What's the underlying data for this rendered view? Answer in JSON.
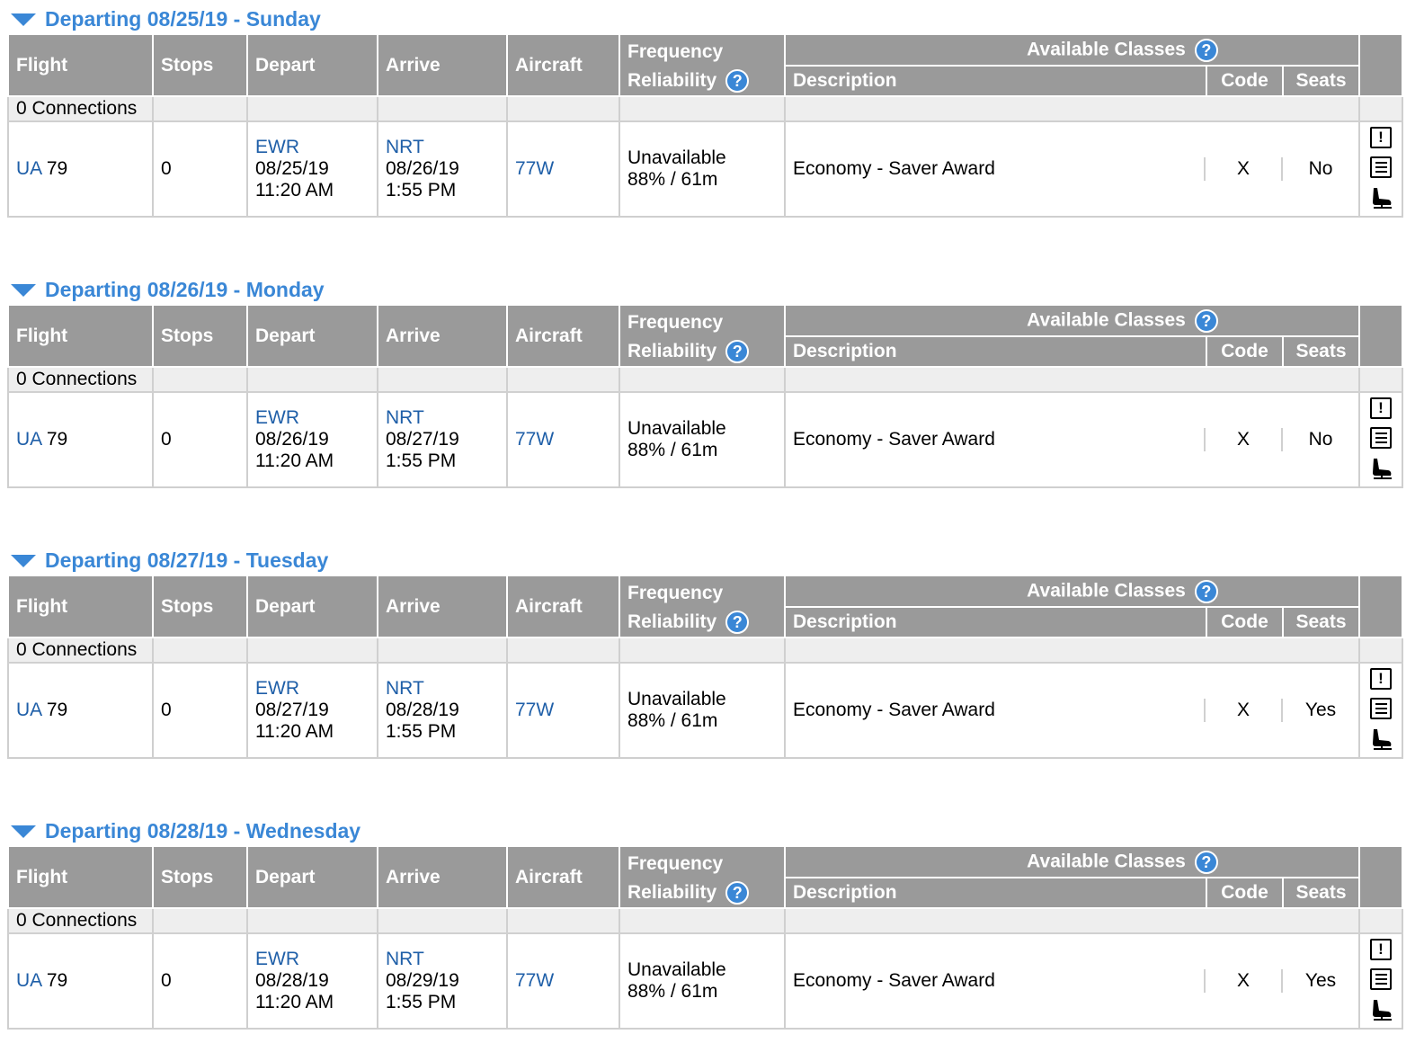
{
  "headers": {
    "flight": "Flight",
    "stops": "Stops",
    "depart": "Depart",
    "arrive": "Arrive",
    "aircraft": "Aircraft",
    "frequency": "Frequency",
    "reliability": "Reliability",
    "available_classes": "Available Classes",
    "description": "Description",
    "code": "Code",
    "seats": "Seats",
    "help_glyph": "?"
  },
  "icons": {
    "alert": "!",
    "alert_name": "alert-icon",
    "details_name": "details-icon",
    "seat_name": "seat-map-icon"
  },
  "days": [
    {
      "title": "Departing 08/25/19 - Sunday",
      "connections": "0 Connections",
      "flight": {
        "carrier": "UA",
        "number": "79",
        "stops": "0",
        "depart_airport": "EWR",
        "depart_date": "08/25/19",
        "depart_time": "11:20 AM",
        "arrive_airport": "NRT",
        "arrive_date": "08/26/19",
        "arrive_time": "1:55 PM",
        "aircraft": "77W",
        "frequency": "Unavailable",
        "reliability": "88% / 61m",
        "class_description": "Economy - Saver Award",
        "class_code": "X",
        "seats": "No"
      }
    },
    {
      "title": "Departing 08/26/19 - Monday",
      "connections": "0 Connections",
      "flight": {
        "carrier": "UA",
        "number": "79",
        "stops": "0",
        "depart_airport": "EWR",
        "depart_date": "08/26/19",
        "depart_time": "11:20 AM",
        "arrive_airport": "NRT",
        "arrive_date": "08/27/19",
        "arrive_time": "1:55 PM",
        "aircraft": "77W",
        "frequency": "Unavailable",
        "reliability": "88% / 61m",
        "class_description": "Economy - Saver Award",
        "class_code": "X",
        "seats": "No"
      }
    },
    {
      "title": "Departing 08/27/19 - Tuesday",
      "connections": "0 Connections",
      "flight": {
        "carrier": "UA",
        "number": "79",
        "stops": "0",
        "depart_airport": "EWR",
        "depart_date": "08/27/19",
        "depart_time": "11:20 AM",
        "arrive_airport": "NRT",
        "arrive_date": "08/28/19",
        "arrive_time": "1:55 PM",
        "aircraft": "77W",
        "frequency": "Unavailable",
        "reliability": "88% / 61m",
        "class_description": "Economy - Saver Award",
        "class_code": "X",
        "seats": "Yes"
      }
    },
    {
      "title": "Departing 08/28/19 - Wednesday",
      "connections": "0 Connections",
      "flight": {
        "carrier": "UA",
        "number": "79",
        "stops": "0",
        "depart_airport": "EWR",
        "depart_date": "08/28/19",
        "depart_time": "11:20 AM",
        "arrive_airport": "NRT",
        "arrive_date": "08/29/19",
        "arrive_time": "1:55 PM",
        "aircraft": "77W",
        "frequency": "Unavailable",
        "reliability": "88% / 61m",
        "class_description": "Economy - Saver Award",
        "class_code": "X",
        "seats": "Yes"
      }
    }
  ]
}
